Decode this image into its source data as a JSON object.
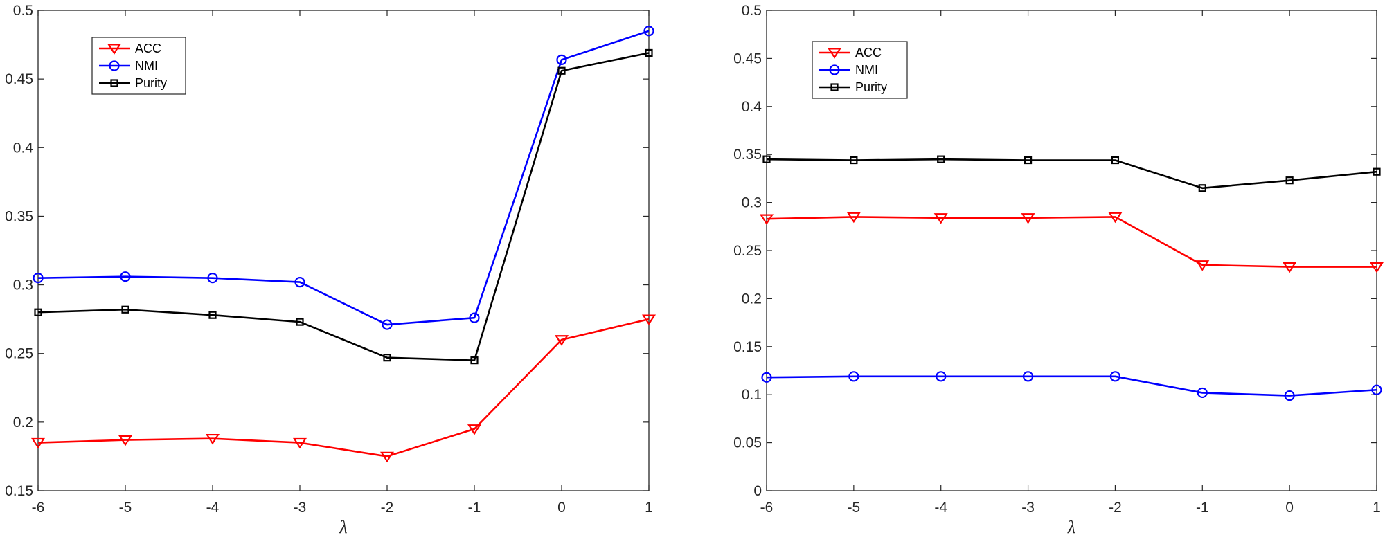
{
  "chart_data": [
    {
      "type": "line",
      "title": "",
      "xlabel": "λ",
      "ylabel": "",
      "x": [
        -6,
        -5,
        -4,
        -3,
        -2,
        -1,
        0,
        1
      ],
      "xlim": [
        -6,
        1
      ],
      "ylim": [
        0.15,
        0.5
      ],
      "xticks": [
        "-6",
        "-5",
        "-4",
        "-3",
        "-2",
        "-1",
        "0",
        "1"
      ],
      "yticks": [
        "0.15",
        "0.2",
        "0.25",
        "0.3",
        "0.35",
        "0.4",
        "0.45",
        "0.5"
      ],
      "grid": false,
      "legend_position": "top-left",
      "series": [
        {
          "name": "ACC",
          "color": "#ff0000",
          "marker": "triangle-down",
          "values": [
            0.185,
            0.187,
            0.188,
            0.185,
            0.175,
            0.195,
            0.26,
            0.275
          ]
        },
        {
          "name": "NMI",
          "color": "#0000ff",
          "marker": "circle",
          "values": [
            0.305,
            0.306,
            0.305,
            0.302,
            0.271,
            0.276,
            0.464,
            0.485
          ]
        },
        {
          "name": "Purity",
          "color": "#000000",
          "marker": "square",
          "values": [
            0.28,
            0.282,
            0.278,
            0.273,
            0.247,
            0.245,
            0.456,
            0.469
          ]
        }
      ]
    },
    {
      "type": "line",
      "title": "",
      "xlabel": "λ",
      "ylabel": "",
      "x": [
        -6,
        -5,
        -4,
        -3,
        -2,
        -1,
        0,
        1
      ],
      "xlim": [
        -6,
        1
      ],
      "ylim": [
        0,
        0.5
      ],
      "xticks": [
        "-6",
        "-5",
        "-4",
        "-3",
        "-2",
        "-1",
        "0",
        "1"
      ],
      "yticks": [
        "0",
        "0.05",
        "0.1",
        "0.15",
        "0.2",
        "0.25",
        "0.3",
        "0.35",
        "0.4",
        "0.45",
        "0.5"
      ],
      "grid": false,
      "legend_position": "top-left",
      "series": [
        {
          "name": "ACC",
          "color": "#ff0000",
          "marker": "triangle-down",
          "values": [
            0.283,
            0.285,
            0.284,
            0.284,
            0.285,
            0.235,
            0.233,
            0.233
          ]
        },
        {
          "name": "NMI",
          "color": "#0000ff",
          "marker": "circle",
          "values": [
            0.118,
            0.119,
            0.119,
            0.119,
            0.119,
            0.102,
            0.099,
            0.105
          ]
        },
        {
          "name": "Purity",
          "color": "#000000",
          "marker": "square",
          "values": [
            0.345,
            0.344,
            0.345,
            0.344,
            0.344,
            0.315,
            0.323,
            0.332
          ]
        }
      ]
    }
  ]
}
